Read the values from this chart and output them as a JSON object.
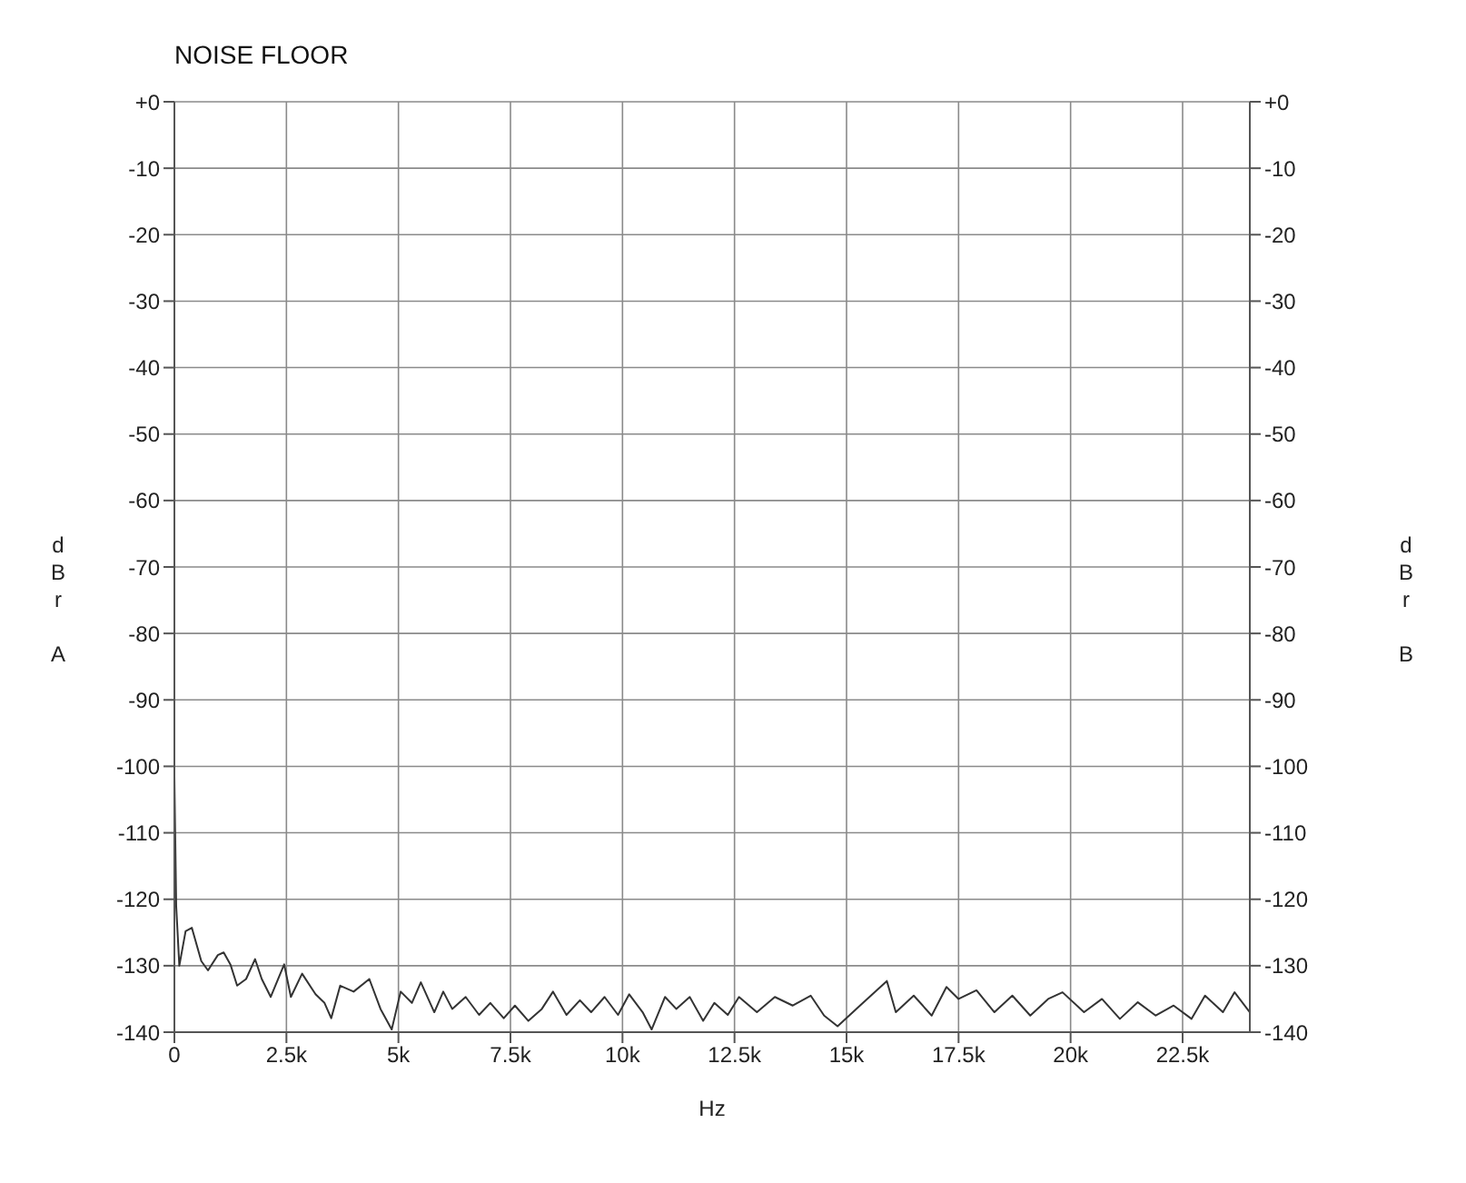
{
  "chart_data": {
    "type": "line",
    "title": "NOISE FLOOR",
    "xlabel": "Hz",
    "ylabel": "dBr A",
    "y2label": "dBr B",
    "x": [
      0,
      40,
      110,
      250,
      390,
      600,
      750,
      970,
      1100,
      1250,
      1400,
      1600,
      1800,
      1950,
      2150,
      2450,
      2600,
      2850,
      3150,
      3350,
      3500,
      3700,
      4000,
      4350,
      4600,
      4850,
      5050,
      5300,
      5500,
      5800,
      6000,
      6200,
      6500,
      6800,
      7050,
      7350,
      7600,
      7900,
      8200,
      8450,
      8750,
      9050,
      9300,
      9600,
      9900,
      10150,
      10450,
      10650,
      10950,
      11200,
      11500,
      11800,
      12050,
      12350,
      12600,
      13000,
      13400,
      13800,
      14200,
      14500,
      14800,
      15300,
      15900,
      16100,
      16500,
      16900,
      17230,
      17500,
      17900,
      18300,
      18700,
      19100,
      19500,
      19820,
      20300,
      20700,
      21100,
      21500,
      21900,
      22300,
      22700,
      23000,
      23400,
      23660,
      24000
    ],
    "series": [
      {
        "color": "#333333",
        "values": [
          -101.5,
          -121,
          -130,
          -124.8,
          -124.3,
          -129.3,
          -130.7,
          -128.4,
          -128,
          -129.8,
          -133,
          -132,
          -129,
          -132,
          -134.7,
          -129.8,
          -134.7,
          -131.2,
          -134.3,
          -135.6,
          -137.9,
          -133,
          -133.9,
          -132,
          -136.5,
          -139.6,
          -133.9,
          -135.6,
          -132.5,
          -137,
          -133.9,
          -136.5,
          -134.7,
          -137.4,
          -135.6,
          -137.9,
          -136,
          -138.3,
          -136.5,
          -133.9,
          -137.4,
          -135.2,
          -137,
          -134.7,
          -137.4,
          -134.3,
          -137,
          -139.6,
          -134.7,
          -136.5,
          -134.7,
          -138.3,
          -135.6,
          -137.4,
          -134.7,
          -137,
          -134.7,
          -136,
          -134.5,
          -137.5,
          -139.1,
          -136,
          -132.3,
          -137,
          -134.5,
          -137.5,
          -133.2,
          -135,
          -133.7,
          -137,
          -134.5,
          -137.5,
          -135,
          -134,
          -137,
          -135,
          -138,
          -135.5,
          -137.5,
          -136,
          -138,
          -134.5,
          -137,
          -134,
          -137
        ]
      }
    ],
    "xlim": [
      0,
      24000
    ],
    "xticks": [
      0,
      {
        "value": 2500,
        "label": "2.5k"
      },
      {
        "value": 5000,
        "label": "5k"
      },
      {
        "value": 7500,
        "label": "7.5k"
      },
      {
        "value": 10000,
        "label": "10k"
      },
      {
        "value": 12500,
        "label": "12.5k"
      },
      {
        "value": 15000,
        "label": "15k"
      },
      {
        "value": 17500,
        "label": "17.5k"
      },
      {
        "value": 20000,
        "label": "20k"
      },
      {
        "value": 22500,
        "label": "22.5k"
      }
    ],
    "ylim": [
      -140,
      0
    ],
    "yticks": [
      {
        "value": 0,
        "label": "+0"
      },
      -10,
      -20,
      -30,
      -40,
      -50,
      -60,
      -70,
      -80,
      -90,
      -100,
      -110,
      -120,
      -130,
      -140
    ],
    "y2lim": [
      -140,
      0
    ],
    "y2ticks": [
      {
        "value": 0,
        "label": "+0"
      },
      -10,
      -20,
      -30,
      -40,
      -50,
      -60,
      -70,
      -80,
      -90,
      -100,
      -110,
      -120,
      -130,
      -140
    ],
    "grid": true,
    "marker": "none",
    "line_style": "solid"
  }
}
